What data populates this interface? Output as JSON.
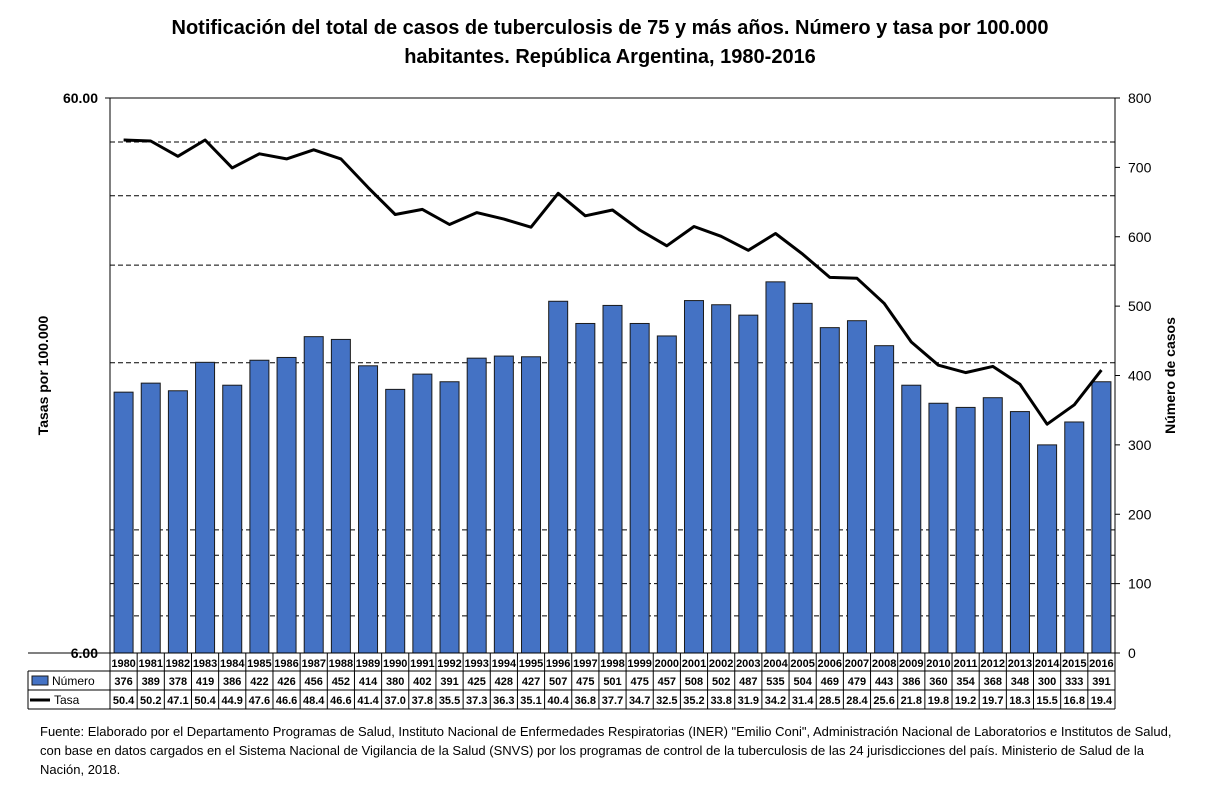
{
  "title_lines": [
    "Notificación del total de casos de tuberculosis de 75 y más años. Número y tasa por 100.000",
    "habitantes. República Argentina, 1980-2016"
  ],
  "source": "Fuente: Elaborado por el Departamento Programas de Salud, Instituto Nacional de Enfermedades Respiratorias (INER) \"Emilio Coni\", Administración Nacional de Laboratorios e Institutos de Salud, con base en datos cargados en el Sistema Nacional de Vigilancia de la Salud (SNVS) por los programas de control de la tuberculosis de las 24 jurisdicciones del país. Ministerio de Salud de la Nación, 2018.",
  "colors": {
    "bar": "#4472C4",
    "bar_stroke": "#1a1a1a",
    "line": "#000000",
    "grid": "#000000"
  },
  "chart_data": {
    "type": "bar+line",
    "categories": [
      "1980",
      "1981",
      "1982",
      "1983",
      "1984",
      "1985",
      "1986",
      "1987",
      "1988",
      "1989",
      "1990",
      "1991",
      "1992",
      "1993",
      "1994",
      "1995",
      "1996",
      "1997",
      "1998",
      "1999",
      "2000",
      "2001",
      "2002",
      "2003",
      "2004",
      "2005",
      "2006",
      "2007",
      "2008",
      "2009",
      "2010",
      "2011",
      "2012",
      "2013",
      "2014",
      "2015",
      "2016"
    ],
    "series": [
      {
        "name": "Número",
        "type": "bar",
        "axis": "right",
        "values": [
          376,
          389,
          378,
          419,
          386,
          422,
          426,
          456,
          452,
          414,
          380,
          402,
          391,
          425,
          428,
          427,
          507,
          475,
          501,
          475,
          457,
          508,
          502,
          487,
          535,
          504,
          469,
          479,
          443,
          386,
          360,
          354,
          368,
          348,
          300,
          333,
          391
        ]
      },
      {
        "name": "Tasa",
        "type": "line",
        "axis": "left",
        "values": [
          50.4,
          50.2,
          47.1,
          50.4,
          44.9,
          47.6,
          46.6,
          48.4,
          46.6,
          41.4,
          37.0,
          37.8,
          35.5,
          37.3,
          36.3,
          35.1,
          40.4,
          36.8,
          37.7,
          34.7,
          32.5,
          35.2,
          33.8,
          31.9,
          34.2,
          31.4,
          28.5,
          28.4,
          25.6,
          21.8,
          19.8,
          19.2,
          19.7,
          18.3,
          15.5,
          16.8,
          19.4
        ]
      }
    ],
    "y_left": {
      "label": "Tasas por 100.000",
      "scale": "log",
      "range": [
        6,
        60
      ],
      "tick_labels": [
        "60.00",
        "6.00"
      ]
    },
    "y_right": {
      "label": "Número de casos",
      "range": [
        0,
        800
      ],
      "ticks": [
        0,
        100,
        200,
        300,
        400,
        500,
        600,
        700,
        800
      ]
    },
    "grid": "dashed horizontal (log scale)",
    "legend": "data table below chart"
  }
}
